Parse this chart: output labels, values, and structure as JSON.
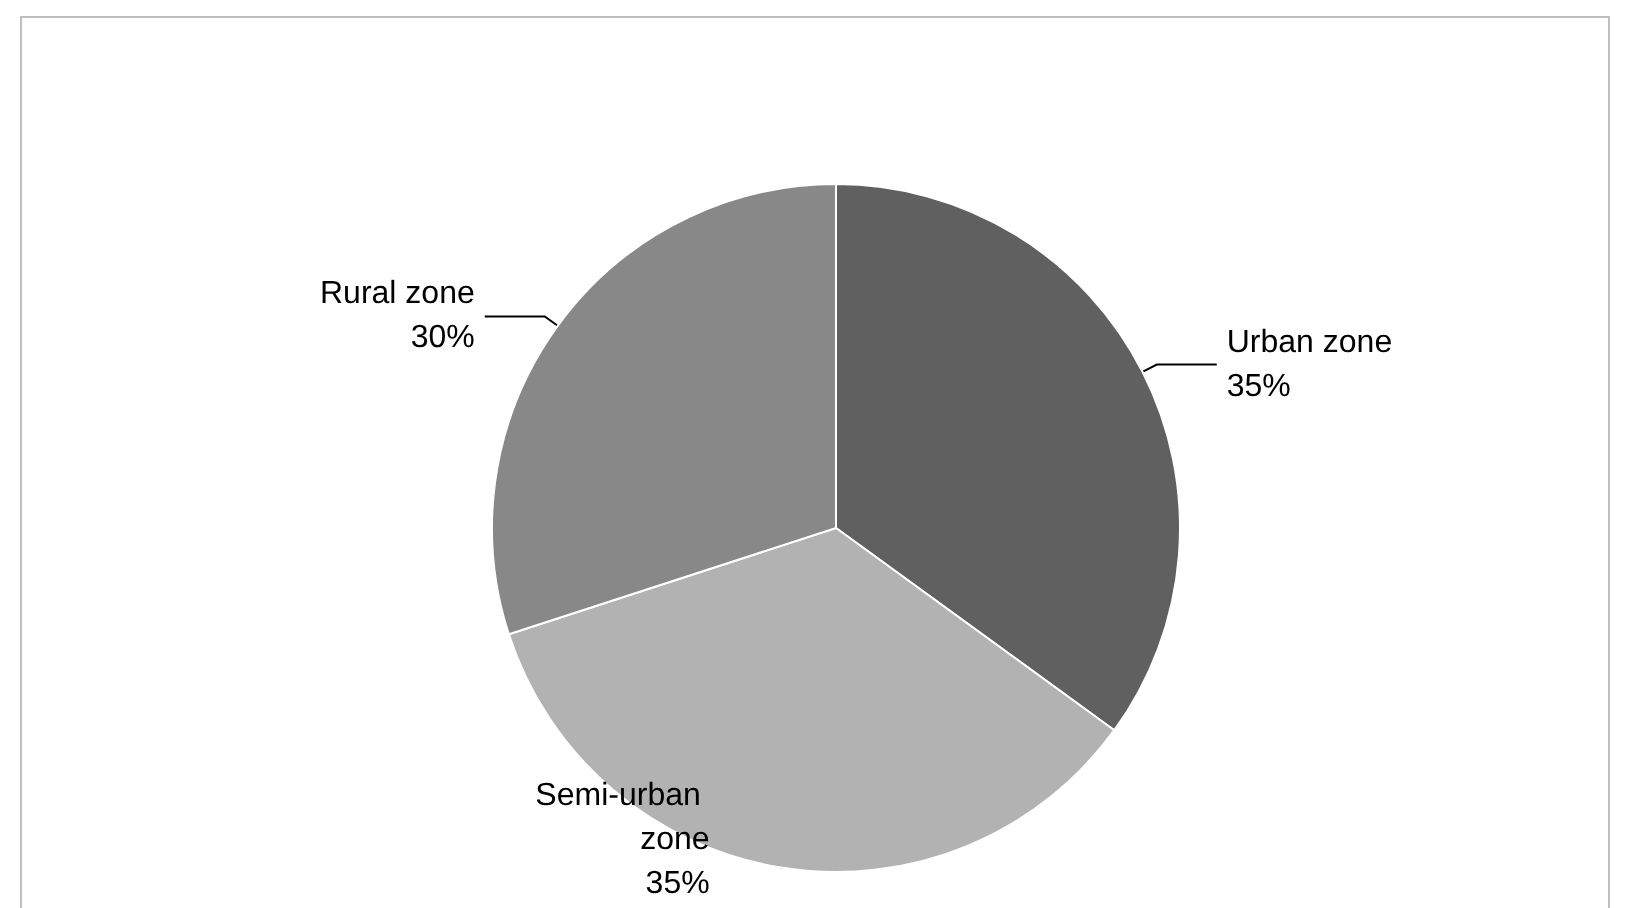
{
  "chart_data": {
    "type": "pie",
    "categories": [
      "Urban zone",
      "Semi-urban zone",
      "Rural zone"
    ],
    "values": [
      35,
      35,
      30
    ],
    "value_labels": [
      "35%",
      "35%",
      "30%"
    ],
    "colors": [
      "#606060",
      "#b2b2b2",
      "#888888"
    ],
    "legend": false
  }
}
